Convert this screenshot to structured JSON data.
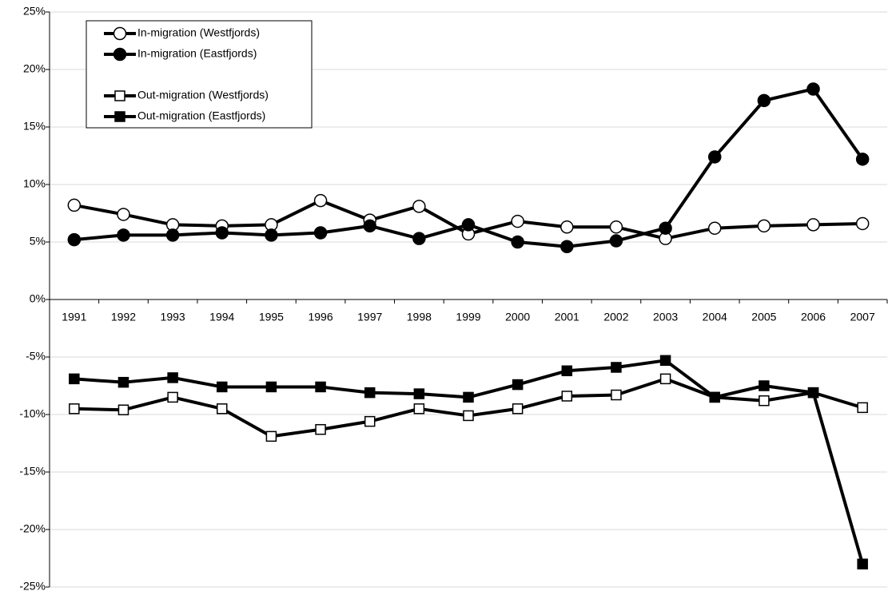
{
  "chart_data": {
    "type": "line",
    "categories": [
      "1991",
      "1992",
      "1993",
      "1994",
      "1995",
      "1996",
      "1997",
      "1998",
      "1999",
      "2000",
      "2001",
      "2002",
      "2003",
      "2004",
      "2005",
      "2006",
      "2007"
    ],
    "series": [
      {
        "name": "In-migration (Westfjords)",
        "color": "#000000",
        "marker": "circle",
        "marker_fill": "#ffffff",
        "values": [
          8.2,
          7.4,
          6.5,
          6.4,
          6.5,
          8.6,
          6.9,
          8.1,
          5.7,
          6.8,
          6.3,
          6.3,
          5.3,
          6.2,
          6.4,
          6.5,
          6.6
        ]
      },
      {
        "name": "In-migration (Eastfjords)",
        "color": "#000000",
        "marker": "circle",
        "marker_fill": "#000000",
        "values": [
          5.2,
          5.6,
          5.6,
          5.8,
          5.6,
          5.8,
          6.4,
          5.3,
          6.5,
          5.0,
          4.6,
          5.1,
          6.2,
          12.4,
          17.3,
          18.3,
          12.2
        ]
      },
      {
        "name": "Out-migration (Westfjords)",
        "color": "#000000",
        "marker": "square",
        "marker_fill": "#ffffff",
        "values": [
          -9.5,
          -9.6,
          -8.5,
          -9.5,
          -11.9,
          -11.3,
          -10.6,
          -9.5,
          -10.1,
          -9.5,
          -8.4,
          -8.3,
          -6.9,
          -8.5,
          -8.8,
          -8.1,
          -9.4
        ]
      },
      {
        "name": "Out-migration (Eastfjords)",
        "color": "#000000",
        "marker": "square",
        "marker_fill": "#000000",
        "values": [
          -6.9,
          -7.2,
          -6.8,
          -7.6,
          -7.6,
          -7.6,
          -8.1,
          -8.2,
          -8.5,
          -7.4,
          -6.2,
          -5.9,
          -5.3,
          -8.5,
          -7.5,
          -8.1,
          -23.0
        ]
      }
    ],
    "ylim": [
      -25,
      25
    ],
    "yticks": [
      {
        "value": -25,
        "label": "-25%"
      },
      {
        "value": -20,
        "label": "-20%"
      },
      {
        "value": -15,
        "label": "-15%"
      },
      {
        "value": -10,
        "label": "-10%"
      },
      {
        "value": -5,
        "label": "-5%"
      },
      {
        "value": 0,
        "label": "0%"
      },
      {
        "value": 5,
        "label": "5%"
      },
      {
        "value": 10,
        "label": "10%"
      },
      {
        "value": 15,
        "label": "15%"
      },
      {
        "value": 20,
        "label": "20%"
      },
      {
        "value": 25,
        "label": "25%"
      }
    ],
    "grid": true
  }
}
